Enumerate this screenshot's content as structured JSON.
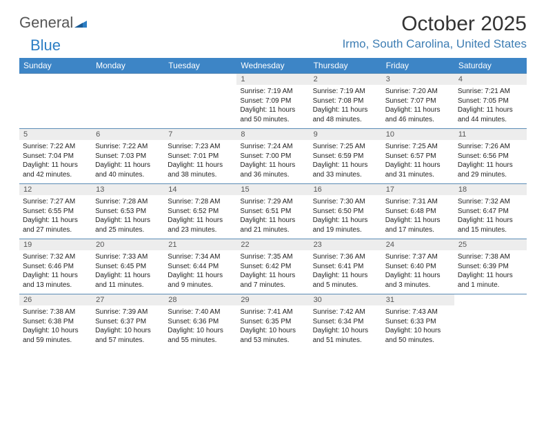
{
  "brand": {
    "word1": "General",
    "word2": "Blue"
  },
  "title": "October 2025",
  "location": "Irmo, South Carolina, United States",
  "colors": {
    "header_bg": "#3d85c6",
    "header_text": "#ffffff",
    "daynum_bg": "#ededed",
    "week_border": "#5a8bb5",
    "location_color": "#3d7db3",
    "logo_blue": "#2c7ec4"
  },
  "dayNames": [
    "Sunday",
    "Monday",
    "Tuesday",
    "Wednesday",
    "Thursday",
    "Friday",
    "Saturday"
  ],
  "weeks": [
    [
      {
        "empty": true
      },
      {
        "empty": true
      },
      {
        "empty": true
      },
      {
        "num": "1",
        "sunrise": "7:19 AM",
        "sunset": "7:09 PM",
        "daylight": "11 hours and 50 minutes."
      },
      {
        "num": "2",
        "sunrise": "7:19 AM",
        "sunset": "7:08 PM",
        "daylight": "11 hours and 48 minutes."
      },
      {
        "num": "3",
        "sunrise": "7:20 AM",
        "sunset": "7:07 PM",
        "daylight": "11 hours and 46 minutes."
      },
      {
        "num": "4",
        "sunrise": "7:21 AM",
        "sunset": "7:05 PM",
        "daylight": "11 hours and 44 minutes."
      }
    ],
    [
      {
        "num": "5",
        "sunrise": "7:22 AM",
        "sunset": "7:04 PM",
        "daylight": "11 hours and 42 minutes."
      },
      {
        "num": "6",
        "sunrise": "7:22 AM",
        "sunset": "7:03 PM",
        "daylight": "11 hours and 40 minutes."
      },
      {
        "num": "7",
        "sunrise": "7:23 AM",
        "sunset": "7:01 PM",
        "daylight": "11 hours and 38 minutes."
      },
      {
        "num": "8",
        "sunrise": "7:24 AM",
        "sunset": "7:00 PM",
        "daylight": "11 hours and 36 minutes."
      },
      {
        "num": "9",
        "sunrise": "7:25 AM",
        "sunset": "6:59 PM",
        "daylight": "11 hours and 33 minutes."
      },
      {
        "num": "10",
        "sunrise": "7:25 AM",
        "sunset": "6:57 PM",
        "daylight": "11 hours and 31 minutes."
      },
      {
        "num": "11",
        "sunrise": "7:26 AM",
        "sunset": "6:56 PM",
        "daylight": "11 hours and 29 minutes."
      }
    ],
    [
      {
        "num": "12",
        "sunrise": "7:27 AM",
        "sunset": "6:55 PM",
        "daylight": "11 hours and 27 minutes."
      },
      {
        "num": "13",
        "sunrise": "7:28 AM",
        "sunset": "6:53 PM",
        "daylight": "11 hours and 25 minutes."
      },
      {
        "num": "14",
        "sunrise": "7:28 AM",
        "sunset": "6:52 PM",
        "daylight": "11 hours and 23 minutes."
      },
      {
        "num": "15",
        "sunrise": "7:29 AM",
        "sunset": "6:51 PM",
        "daylight": "11 hours and 21 minutes."
      },
      {
        "num": "16",
        "sunrise": "7:30 AM",
        "sunset": "6:50 PM",
        "daylight": "11 hours and 19 minutes."
      },
      {
        "num": "17",
        "sunrise": "7:31 AM",
        "sunset": "6:48 PM",
        "daylight": "11 hours and 17 minutes."
      },
      {
        "num": "18",
        "sunrise": "7:32 AM",
        "sunset": "6:47 PM",
        "daylight": "11 hours and 15 minutes."
      }
    ],
    [
      {
        "num": "19",
        "sunrise": "7:32 AM",
        "sunset": "6:46 PM",
        "daylight": "11 hours and 13 minutes."
      },
      {
        "num": "20",
        "sunrise": "7:33 AM",
        "sunset": "6:45 PM",
        "daylight": "11 hours and 11 minutes."
      },
      {
        "num": "21",
        "sunrise": "7:34 AM",
        "sunset": "6:44 PM",
        "daylight": "11 hours and 9 minutes."
      },
      {
        "num": "22",
        "sunrise": "7:35 AM",
        "sunset": "6:42 PM",
        "daylight": "11 hours and 7 minutes."
      },
      {
        "num": "23",
        "sunrise": "7:36 AM",
        "sunset": "6:41 PM",
        "daylight": "11 hours and 5 minutes."
      },
      {
        "num": "24",
        "sunrise": "7:37 AM",
        "sunset": "6:40 PM",
        "daylight": "11 hours and 3 minutes."
      },
      {
        "num": "25",
        "sunrise": "7:38 AM",
        "sunset": "6:39 PM",
        "daylight": "11 hours and 1 minute."
      }
    ],
    [
      {
        "num": "26",
        "sunrise": "7:38 AM",
        "sunset": "6:38 PM",
        "daylight": "10 hours and 59 minutes."
      },
      {
        "num": "27",
        "sunrise": "7:39 AM",
        "sunset": "6:37 PM",
        "daylight": "10 hours and 57 minutes."
      },
      {
        "num": "28",
        "sunrise": "7:40 AM",
        "sunset": "6:36 PM",
        "daylight": "10 hours and 55 minutes."
      },
      {
        "num": "29",
        "sunrise": "7:41 AM",
        "sunset": "6:35 PM",
        "daylight": "10 hours and 53 minutes."
      },
      {
        "num": "30",
        "sunrise": "7:42 AM",
        "sunset": "6:34 PM",
        "daylight": "10 hours and 51 minutes."
      },
      {
        "num": "31",
        "sunrise": "7:43 AM",
        "sunset": "6:33 PM",
        "daylight": "10 hours and 50 minutes."
      },
      {
        "empty": true
      }
    ]
  ],
  "labels": {
    "sunrise": "Sunrise:",
    "sunset": "Sunset:",
    "daylight": "Daylight:"
  }
}
